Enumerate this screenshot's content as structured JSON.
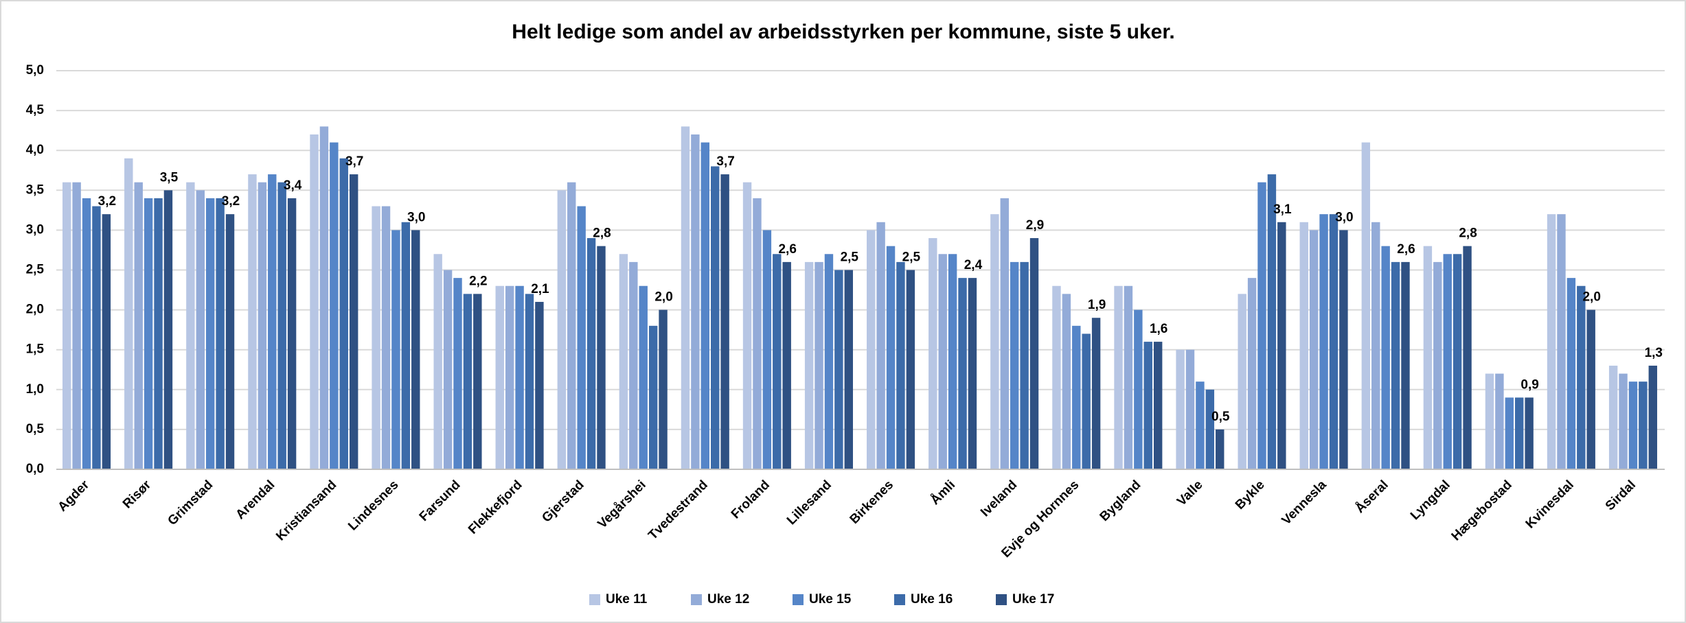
{
  "chart_data": {
    "type": "bar",
    "title": "Helt ledige som andel av arbeidsstyrken per kommune, siste 5 uker.",
    "categories": [
      "Agder",
      "Risør",
      "Grimstad",
      "Arendal",
      "Kristiansand",
      "Lindesnes",
      "Farsund",
      "Flekkefjord",
      "Gjerstad",
      "Vegårshei",
      "Tvedestrand",
      "Froland",
      "Lillesand",
      "Birkenes",
      "Åmli",
      "Iveland",
      "Evje og Hornnes",
      "Bygland",
      "Valle",
      "Bykle",
      "Vennesla",
      "Åseral",
      "Lyngdal",
      "Hægebostad",
      "Kvinesdal",
      "Sirdal"
    ],
    "series": [
      {
        "name": "Uke 11",
        "color": "#b7c6e4",
        "values": [
          3.6,
          3.9,
          3.6,
          3.7,
          4.2,
          3.3,
          2.7,
          2.3,
          3.5,
          2.7,
          4.3,
          3.6,
          2.6,
          3.0,
          2.9,
          3.2,
          2.3,
          2.3,
          1.5,
          2.2,
          3.1,
          4.1,
          2.8,
          1.2,
          3.2,
          1.3
        ]
      },
      {
        "name": "Uke 12",
        "color": "#93abd8",
        "values": [
          3.6,
          3.6,
          3.5,
          3.6,
          4.3,
          3.3,
          2.5,
          2.3,
          3.6,
          2.6,
          4.2,
          3.4,
          2.6,
          3.1,
          2.7,
          3.4,
          2.2,
          2.3,
          1.5,
          2.4,
          3.0,
          3.1,
          2.6,
          1.2,
          3.2,
          1.2
        ]
      },
      {
        "name": "Uke 15",
        "color": "#5585c8",
        "values": [
          3.4,
          3.4,
          3.4,
          3.7,
          4.1,
          3.0,
          2.4,
          2.3,
          3.3,
          2.3,
          4.1,
          3.0,
          2.7,
          2.8,
          2.7,
          2.6,
          1.8,
          2.0,
          1.1,
          3.6,
          3.2,
          2.8,
          2.7,
          0.9,
          2.4,
          1.1
        ]
      },
      {
        "name": "Uke 16",
        "color": "#3c6ba9",
        "values": [
          3.3,
          3.4,
          3.4,
          3.6,
          3.9,
          3.1,
          2.2,
          2.2,
          2.9,
          1.8,
          3.8,
          2.7,
          2.5,
          2.6,
          2.4,
          2.6,
          1.7,
          1.6,
          1.0,
          3.7,
          3.2,
          2.6,
          2.7,
          0.9,
          2.3,
          1.1
        ]
      },
      {
        "name": "Uke 17",
        "color": "#2f5183",
        "values": [
          3.2,
          3.5,
          3.2,
          3.4,
          3.7,
          3.0,
          2.2,
          2.1,
          2.8,
          2.0,
          3.7,
          2.6,
          2.5,
          2.5,
          2.4,
          2.9,
          1.9,
          1.6,
          0.5,
          3.1,
          3.0,
          2.6,
          2.8,
          0.9,
          2.0,
          1.3
        ],
        "value_labels": [
          "3,2",
          "3,5",
          "3,2",
          "3,4",
          "3,7",
          "3,0",
          "2,2",
          "2,1",
          "2,8",
          "2,0",
          "3,7",
          "2,6",
          "2,5",
          "2,5",
          "2,4",
          "2,9",
          "1,9",
          "1,6",
          "0,5",
          "3,1",
          "3,0",
          "2,6",
          "2,8",
          "0,9",
          "2,0",
          "1,3"
        ]
      }
    ],
    "ylim": [
      0,
      5
    ],
    "yticks": [
      {
        "value": 0,
        "label": "0,0"
      },
      {
        "value": 0.5,
        "label": "0,5"
      },
      {
        "value": 1,
        "label": "1,0"
      },
      {
        "value": 1.5,
        "label": "1,5"
      },
      {
        "value": 2,
        "label": "2,0"
      },
      {
        "value": 2.5,
        "label": "2,5"
      },
      {
        "value": 3,
        "label": "3,0"
      },
      {
        "value": 3.5,
        "label": "3,5"
      },
      {
        "value": 4,
        "label": "4,0"
      },
      {
        "value": 4.5,
        "label": "4,5"
      },
      {
        "value": 5,
        "label": "5,0"
      }
    ],
    "grid": true,
    "legend": "bottom"
  }
}
